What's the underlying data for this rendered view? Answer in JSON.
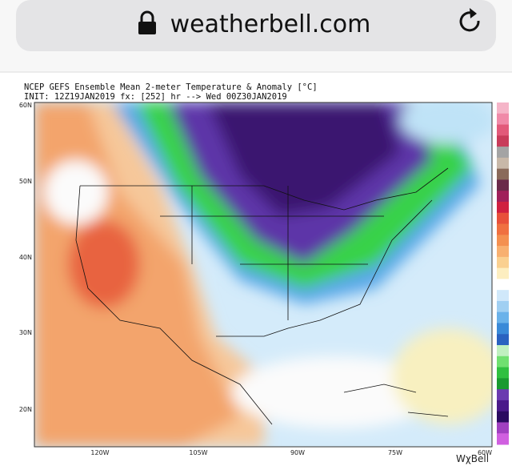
{
  "browser": {
    "url": "weatherbell.com"
  },
  "map": {
    "title": "NCEP GEFS Ensemble Mean 2-meter Temperature & Anomaly [°C]",
    "subtitle": "INIT: 12Z19JAN2019 fx: [252] hr --> Wed 00Z30JAN2019",
    "lat_labels": [
      "60N",
      "50N",
      "40N",
      "30N",
      "20N"
    ],
    "lon_labels": [
      "120W",
      "105W",
      "90W",
      "75W",
      "60W"
    ],
    "logo": "WχBell"
  }
}
